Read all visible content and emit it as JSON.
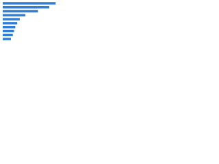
{
  "chart_data": {
    "type": "bar",
    "orientation": "horizontal",
    "categories": [
      null,
      null,
      null,
      null,
      null,
      null,
      null,
      null,
      null,
      null
    ],
    "values": [
      84,
      74,
      56,
      36,
      27,
      23,
      20,
      18,
      16,
      13
    ],
    "color": "#2f7ed8",
    "xlim": [
      0,
      100
    ]
  }
}
